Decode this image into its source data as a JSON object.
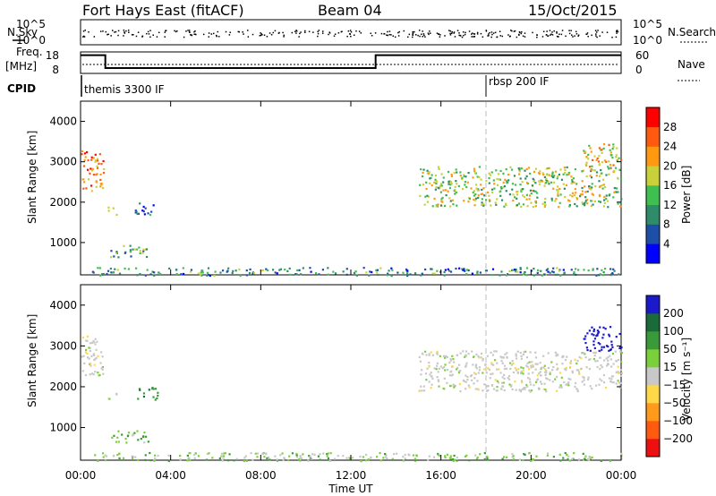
{
  "header": {
    "station": "Fort Hays East (fitACF)",
    "beam": "Beam 04",
    "date": "15/Oct/2015"
  },
  "top_panels": {
    "nsky_label": "N.Sky",
    "nsearch_label": "N.Search",
    "noise_ticks_left": [
      "10^5",
      "10^0"
    ],
    "noise_ticks_right": [
      "10^5",
      "10^0"
    ],
    "freq_label": "Freq.",
    "freq_unit": "[MHz]",
    "freq_ticks": [
      "18",
      "8"
    ],
    "nave_label": "Nave",
    "nave_ticks": [
      "60",
      "0"
    ],
    "cpid_label": "CPID",
    "cpid_segments": [
      {
        "name": "themis 3300 IF",
        "start_hour": 0
      },
      {
        "name": "rbsp 200 IF",
        "start_hour": 18
      }
    ]
  },
  "xaxis": {
    "label": "Time UT",
    "ticks": [
      "00:00",
      "04:00",
      "08:00",
      "12:00",
      "16:00",
      "20:00",
      "00:00"
    ],
    "range_hours": [
      0,
      24
    ]
  },
  "panels": [
    {
      "ylabel": "Slant Range [km]",
      "yticks": [
        "1000",
        "2000",
        "3000",
        "4000"
      ],
      "colorbar_label": "Power [dB]",
      "colorbar_ticks": [
        "4",
        "8",
        "12",
        "16",
        "20",
        "24",
        "28"
      ],
      "colorbar_colors": [
        "#0000ff",
        "#1e4fa8",
        "#2f8c6a",
        "#3fbf4f",
        "#c8d03a",
        "#ff9a10",
        "#ff5a10",
        "#ff0000"
      ]
    },
    {
      "ylabel": "Slant Range [km]",
      "yticks": [
        "1000",
        "2000",
        "3000",
        "4000"
      ],
      "colorbar_label": "Velocity [m s⁻¹]",
      "colorbar_ticks": [
        "200",
        "100",
        "50",
        "15",
        "−15",
        "−50",
        "−100",
        "−200"
      ],
      "colorbar_colors": [
        "#1a1acc",
        "#1a6a3a",
        "#3a9a3a",
        "#7ad03a",
        "#c8c8c8",
        "#ffd84a",
        "#ff9a1a",
        "#ff5a10",
        "#ee1010"
      ]
    }
  ],
  "chart_data": {
    "type": "heatmap",
    "x_units": "hours UT",
    "y_units": "km",
    "ylim": [
      200,
      4500
    ],
    "xlim": [
      0,
      24
    ],
    "cpid_change_hour": 18,
    "frequency_mhz": [
      {
        "from": 0,
        "to": 1.1,
        "value": 16.5
      },
      {
        "from": 1.1,
        "to": 13.1,
        "value": 10.5
      },
      {
        "from": 13.1,
        "to": 24,
        "value": 16.5
      }
    ],
    "echo_regions": [
      {
        "t0": 0.0,
        "t1": 1.0,
        "r0": 2300,
        "r1": 3300,
        "power": 24,
        "velocity": 0
      },
      {
        "t0": 1.2,
        "t1": 1.6,
        "r0": 1700,
        "r1": 1900,
        "power": 14,
        "velocity": 0
      },
      {
        "t0": 2.4,
        "t1": 3.4,
        "r0": 1700,
        "r1": 2000,
        "power": 6,
        "velocity": 60
      },
      {
        "t0": 1.3,
        "t1": 3.0,
        "r0": 650,
        "r1": 950,
        "power": 14,
        "velocity": 30
      },
      {
        "t0": 0.5,
        "t1": 24.0,
        "r0": 200,
        "r1": 400,
        "power": 10,
        "velocity": 20
      },
      {
        "t0": 15.0,
        "t1": 24.0,
        "r0": 1900,
        "r1": 2900,
        "power": 16,
        "velocity": 0
      },
      {
        "t0": 22.3,
        "t1": 24.0,
        "r0": 2900,
        "r1": 3500,
        "power": 20,
        "velocity": 200
      }
    ]
  }
}
